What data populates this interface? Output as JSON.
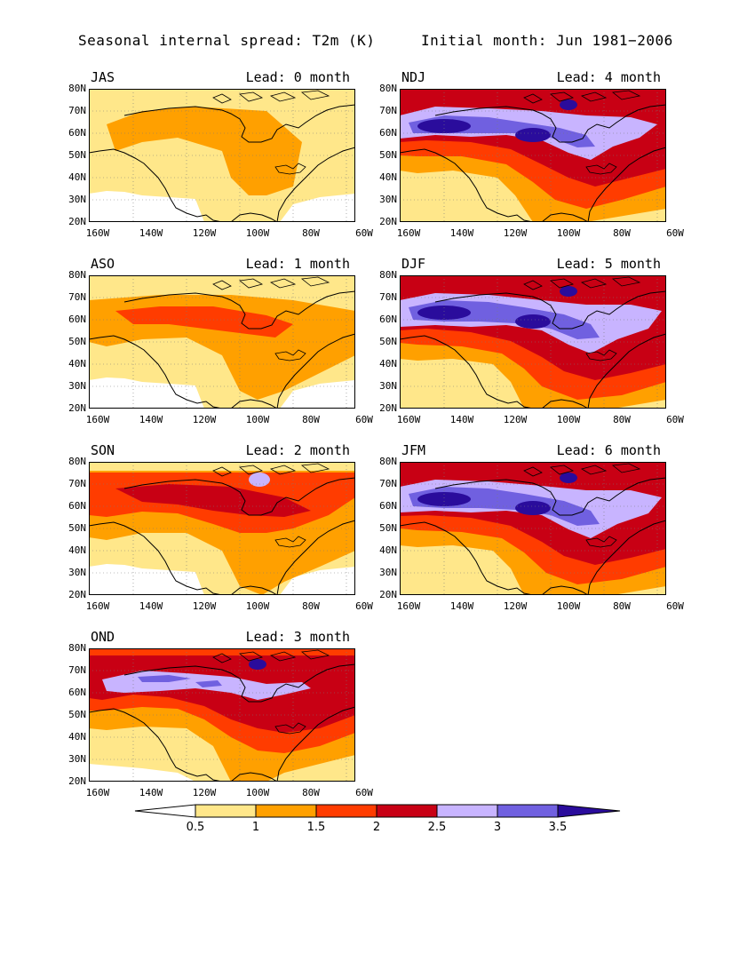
{
  "title_left": "Seasonal internal spread: T2m (K)",
  "title_right": "Initial month: Jun 1981−2006",
  "y_ticks": [
    "80N",
    "70N",
    "60N",
    "50N",
    "40N",
    "30N",
    "20N"
  ],
  "x_ticks": [
    "160W",
    "140W",
    "120W",
    "100W",
    "80W",
    "60W"
  ],
  "panels": [
    {
      "season": "JAS",
      "lead": "Lead: 0 month",
      "level": 0
    },
    {
      "season": "NDJ",
      "lead": "Lead: 4 month",
      "level": 4
    },
    {
      "season": "ASO",
      "lead": "Lead: 1 month",
      "level": 1
    },
    {
      "season": "DJF",
      "lead": "Lead: 5 month",
      "level": 5
    },
    {
      "season": "SON",
      "lead": "Lead: 2 month",
      "level": 2
    },
    {
      "season": "JFM",
      "lead": "Lead: 6 month",
      "level": 6
    },
    {
      "season": "OND",
      "lead": "Lead: 3 month",
      "level": 3
    }
  ],
  "colorbar": {
    "labels": [
      "0.5",
      "1",
      "1.5",
      "2",
      "2.5",
      "3",
      "3.5"
    ],
    "colors": [
      "#ffffff",
      "#ffe78a",
      "#ffa000",
      "#ff3c00",
      "#c80014",
      "#c8b4ff",
      "#7060e0",
      "#2a0c9c"
    ]
  }
}
